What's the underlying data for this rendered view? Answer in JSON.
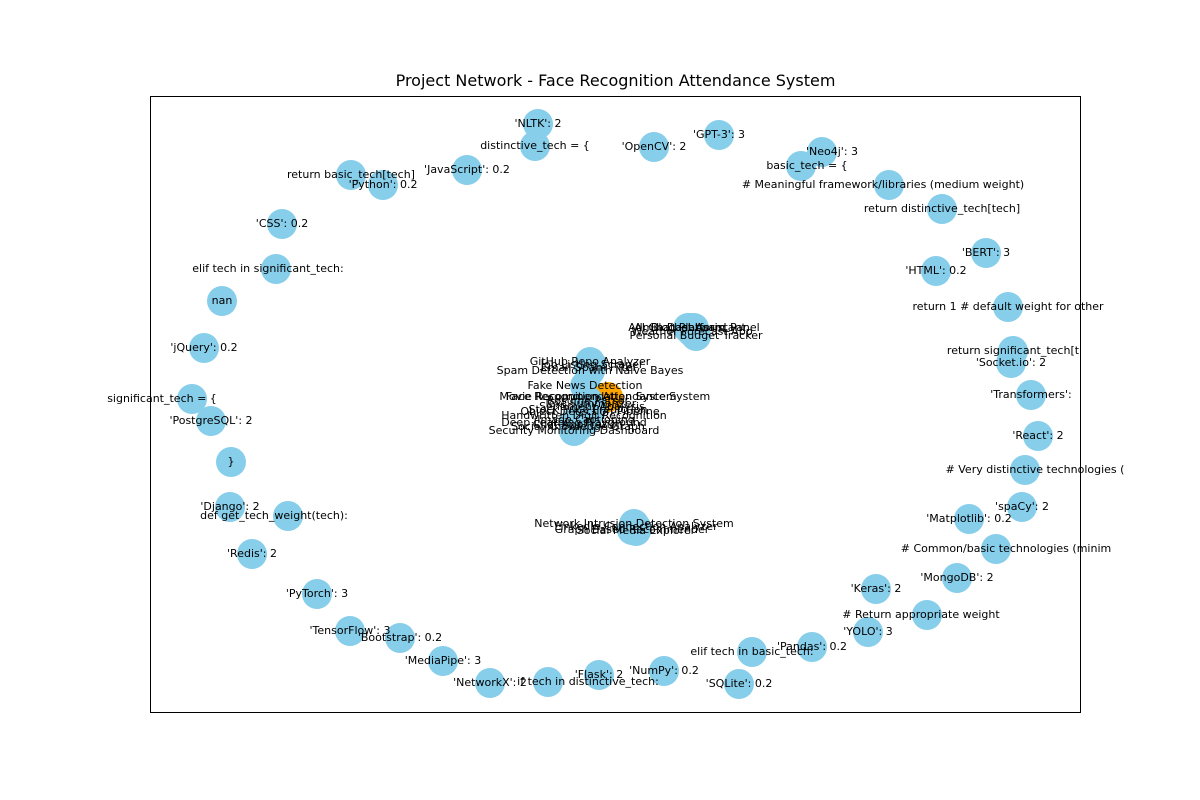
{
  "title": "Project Network - Face Recognition Attendance System",
  "colors": {
    "node": "#87ceeb",
    "center_node": "#ffa500",
    "frame": "#000000",
    "text": "#000000"
  },
  "outer_nodes": [
    "'NLTK': 2",
    "distinctive_tech = {",
    "'GPT-3': 3",
    "'OpenCV': 2",
    "'Neo4j': 3",
    "basic_tech = {",
    "'JavaScript': 0.2",
    "return basic_tech[tech]",
    "'Python': 0.2",
    "# Meaningful framework/libraries (medium weight)",
    "return distinctive_tech[tech]",
    "'CSS': 0.2",
    "'BERT': 3",
    "'HTML': 0.2",
    "elif tech in significant_tech:",
    "nan",
    "return 1  # default weight for other",
    "'jQuery': 0.2",
    "return significant_tech[t",
    "'Socket.io': 2",
    "significant_tech = {",
    "'PostgreSQL': 2",
    "'Transformers':",
    "'React': 2",
    "}",
    "# Very distinctive technologies (",
    "'Django': 2",
    "def get_tech_weight(tech):",
    "'spaCy': 2",
    "'Matplotlib': 0.2",
    "'Redis': 2",
    "# Common/basic technologies (minim",
    "'MongoDB': 2",
    "'Keras': 2",
    "'PyTorch': 3",
    "# Return appropriate weight",
    "'YOLO': 3",
    "'TensorFlow': 3",
    "'Bootstrap': 0.2",
    "'Pandas': 0.2",
    "elif tech in basic_tech:",
    "'MediaPipe': 3",
    "'NumPy': 0.2",
    "'Flask': 2",
    "'SQLite': 0.2",
    "'NetworkX': 2",
    "if tech in distinctive_tech:"
  ],
  "cluster_labels": [
    "Blog Platform",
    "AI Chatbot Assistant",
    "Admin Dashboard Panel",
    "Weather Forecast App",
    "Personal Budget Tracker",
    "GitHub Repo Analyzer",
    "Job Listing Scraper",
    "Email Spam Filter",
    "Spam Detection with Naive Bayes",
    "Fake News Detection",
    "Movie Recommendation System",
    "Face Recognition Attendance System",
    "Resume Parser",
    "Text Summarizer",
    "Sentiment Analysis",
    "Stock Price Prediction",
    "Object Detection Pipeline",
    "Handwritten Digit Recognition",
    "Image Captioning",
    "Deep Learning Playground",
    "Chat Application",
    "Social Knowledge Graph",
    "Security Monitoring Dashboard",
    "Network Intrusion Detection System",
    "LinkedIn Connection Analyzer",
    "Graph Based Recommender",
    "Social Media Explorer",
    "Social Network Analyzer"
  ]
}
